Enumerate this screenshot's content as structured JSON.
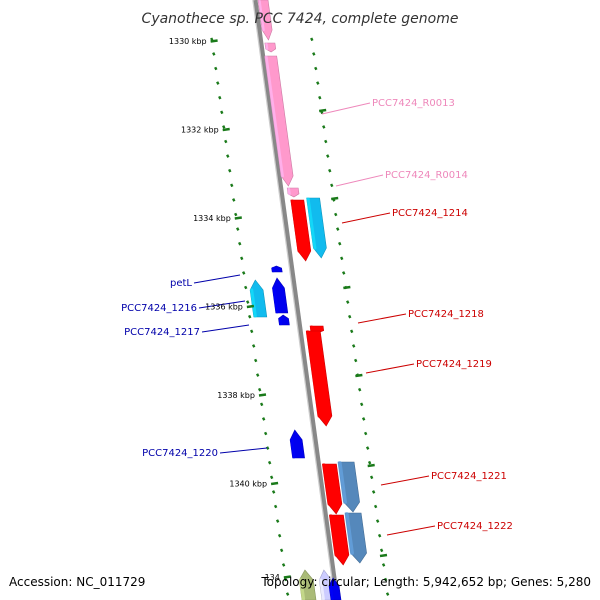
{
  "title": "Cyanothece sp. PCC 7424, complete genome",
  "accession": "Accession: NC_011729",
  "topology": "Topology: circular; Length: 5,942,652 bp; Genes: 5,280",
  "colors": {
    "backbone": "#888888",
    "tick": "#1a7a1a",
    "rRNA": "#ff99cc",
    "rRNA_label": "#ee88bb",
    "cds_forward": "#ff0000",
    "label_forward": "#cc0000",
    "cds_reverse": "#0000ee",
    "label_reverse": "#0000aa",
    "cyan": "#11bbee",
    "steel": "#5588bb",
    "olive": "#aabb77",
    "lavender": "#ccccff"
  },
  "scale_labels": [
    "1330 kbp",
    "1332 kbp",
    "1334 kbp",
    "1336 kbp",
    "1338 kbp",
    "1340 kbp",
    "134"
  ],
  "genes": [
    {
      "label": "PCC7424_R0013",
      "color": "rRNA",
      "label_color": "rRNA_label"
    },
    {
      "label": "PCC7424_R0014",
      "color": "rRNA",
      "label_color": "rRNA_label"
    },
    {
      "label": "PCC7424_1214",
      "color": "cds_forward",
      "label_color": "label_forward"
    },
    {
      "label": "petL",
      "color": "cds_reverse",
      "label_color": "label_reverse"
    },
    {
      "label": "PCC7424_1216",
      "color": "cyan",
      "label_color": "label_reverse"
    },
    {
      "label": "PCC7424_1217",
      "color": "cds_reverse",
      "label_color": "label_reverse"
    },
    {
      "label": "PCC7424_1218",
      "color": "cds_forward",
      "label_color": "label_forward"
    },
    {
      "label": "PCC7424_1219",
      "color": "cds_forward",
      "label_color": "label_forward"
    },
    {
      "label": "PCC7424_1220",
      "color": "cds_reverse",
      "label_color": "label_reverse"
    },
    {
      "label": "PCC7424_1221",
      "color": "cds_forward",
      "label_color": "label_forward"
    },
    {
      "label": "PCC7424_1222",
      "color": "cds_forward",
      "label_color": "label_forward"
    }
  ]
}
